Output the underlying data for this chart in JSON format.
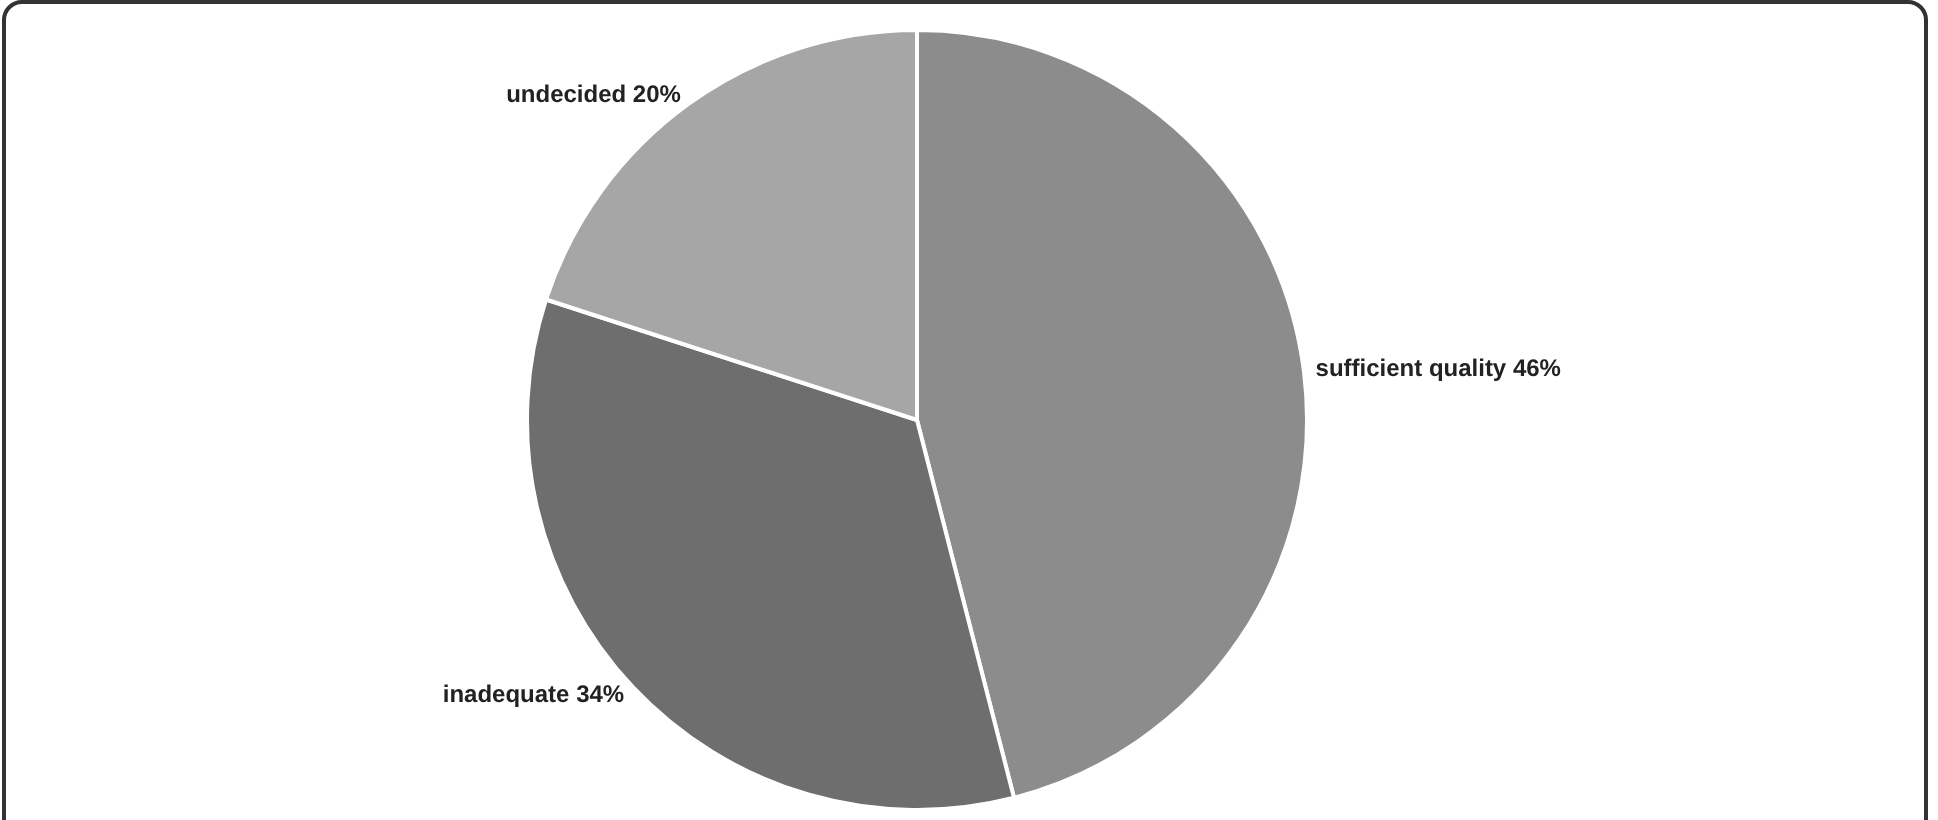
{
  "chart_data": {
    "type": "pie",
    "categories": [
      "sufficient quality",
      "inadequate",
      "undecided"
    ],
    "values": [
      46,
      34,
      20
    ],
    "value_labels": [
      "46%",
      "34%",
      "20%"
    ],
    "colors": [
      "#8c8c8c",
      "#6e6e6e",
      "#a6a6a6"
    ],
    "legend": false
  }
}
